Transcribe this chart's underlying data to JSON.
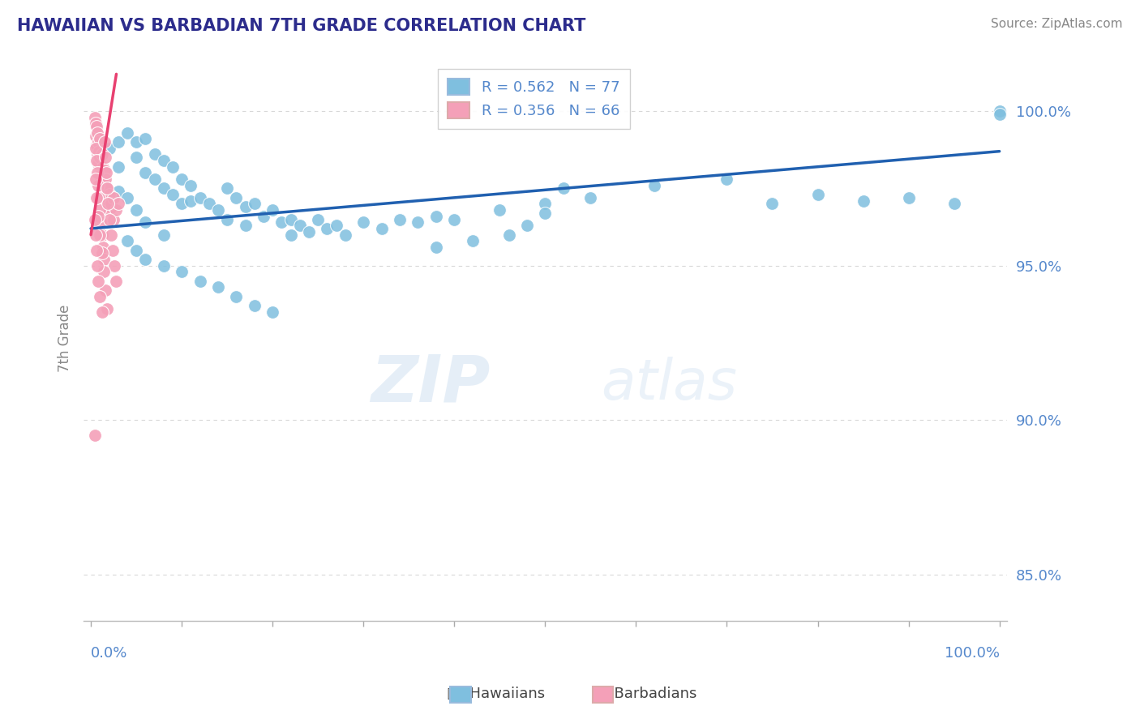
{
  "title": "HAWAIIAN VS BARBADIAN 7TH GRADE CORRELATION CHART",
  "source": "Source: ZipAtlas.com",
  "ylabel": "7th Grade",
  "watermark_zip": "ZIP",
  "watermark_atlas": "atlas",
  "legend_blue": {
    "R": 0.562,
    "N": 77,
    "label": "Hawaiians"
  },
  "legend_pink": {
    "R": 0.356,
    "N": 66,
    "label": "Barbadians"
  },
  "yticks": [
    85.0,
    90.0,
    95.0,
    100.0
  ],
  "ylim": [
    83.5,
    101.8
  ],
  "xlim": [
    -0.008,
    1.008
  ],
  "blue_color": "#7fbfdf",
  "pink_color": "#f4a0b8",
  "blue_line_color": "#2060b0",
  "pink_line_color": "#e84070",
  "grid_color": "#d8d8d8",
  "title_color": "#2c2c8c",
  "axis_label_color": "#5588cc",
  "source_color": "#888888",
  "ylabel_color": "#888888",
  "blue_scatter_x": [
    0.02,
    0.03,
    0.03,
    0.04,
    0.05,
    0.05,
    0.06,
    0.06,
    0.07,
    0.07,
    0.08,
    0.08,
    0.09,
    0.09,
    0.1,
    0.1,
    0.11,
    0.11,
    0.12,
    0.13,
    0.14,
    0.15,
    0.15,
    0.16,
    0.17,
    0.17,
    0.18,
    0.19,
    0.2,
    0.21,
    0.22,
    0.22,
    0.23,
    0.24,
    0.25,
    0.26,
    0.27,
    0.28,
    0.3,
    0.32,
    0.34,
    0.36,
    0.38,
    0.4,
    0.45,
    0.5,
    0.55,
    0.38,
    0.42,
    0.46,
    0.04,
    0.05,
    0.06,
    0.08,
    0.1,
    0.12,
    0.14,
    0.16,
    0.18,
    0.2,
    0.75,
    0.8,
    0.85,
    0.9,
    0.95,
    1.0,
    1.0,
    0.62,
    0.7,
    0.52,
    0.5,
    0.48,
    0.03,
    0.04,
    0.05,
    0.06,
    0.08
  ],
  "blue_scatter_y": [
    98.8,
    99.0,
    98.2,
    99.3,
    99.0,
    98.5,
    99.1,
    98.0,
    98.6,
    97.8,
    98.4,
    97.5,
    98.2,
    97.3,
    97.8,
    97.0,
    97.6,
    97.1,
    97.2,
    97.0,
    96.8,
    97.5,
    96.5,
    97.2,
    96.9,
    96.3,
    97.0,
    96.6,
    96.8,
    96.4,
    96.5,
    96.0,
    96.3,
    96.1,
    96.5,
    96.2,
    96.3,
    96.0,
    96.4,
    96.2,
    96.5,
    96.4,
    96.6,
    96.5,
    96.8,
    97.0,
    97.2,
    95.6,
    95.8,
    96.0,
    95.8,
    95.5,
    95.2,
    95.0,
    94.8,
    94.5,
    94.3,
    94.0,
    93.7,
    93.5,
    97.0,
    97.3,
    97.1,
    97.2,
    97.0,
    100.0,
    99.9,
    97.6,
    97.8,
    97.5,
    96.7,
    96.3,
    97.4,
    97.2,
    96.8,
    96.4,
    96.0
  ],
  "pink_scatter_x": [
    0.004,
    0.005,
    0.005,
    0.006,
    0.006,
    0.007,
    0.007,
    0.008,
    0.008,
    0.009,
    0.01,
    0.01,
    0.01,
    0.012,
    0.012,
    0.013,
    0.014,
    0.015,
    0.015,
    0.016,
    0.017,
    0.018,
    0.019,
    0.02,
    0.02,
    0.022,
    0.025,
    0.025,
    0.028,
    0.03,
    0.005,
    0.006,
    0.007,
    0.008,
    0.009,
    0.01,
    0.011,
    0.012,
    0.013,
    0.014,
    0.015,
    0.016,
    0.017,
    0.018,
    0.019,
    0.02,
    0.022,
    0.024,
    0.026,
    0.028,
    0.005,
    0.006,
    0.008,
    0.01,
    0.012,
    0.014,
    0.016,
    0.018,
    0.004,
    0.005,
    0.006,
    0.007,
    0.008,
    0.01,
    0.012,
    0.004
  ],
  "pink_scatter_y": [
    99.8,
    99.6,
    99.2,
    99.5,
    98.9,
    99.3,
    98.6,
    99.0,
    98.3,
    98.7,
    99.1,
    98.5,
    97.9,
    98.6,
    97.8,
    98.2,
    97.5,
    98.1,
    97.3,
    97.8,
    97.0,
    97.5,
    97.1,
    97.3,
    96.8,
    97.0,
    97.2,
    96.5,
    96.8,
    97.0,
    98.8,
    98.4,
    98.0,
    97.6,
    97.2,
    96.8,
    96.4,
    96.0,
    95.6,
    95.2,
    99.0,
    98.5,
    98.0,
    97.5,
    97.0,
    96.5,
    96.0,
    95.5,
    95.0,
    94.5,
    97.8,
    97.2,
    96.6,
    96.0,
    95.4,
    94.8,
    94.2,
    93.6,
    96.5,
    96.0,
    95.5,
    95.0,
    94.5,
    94.0,
    93.5,
    89.5
  ]
}
